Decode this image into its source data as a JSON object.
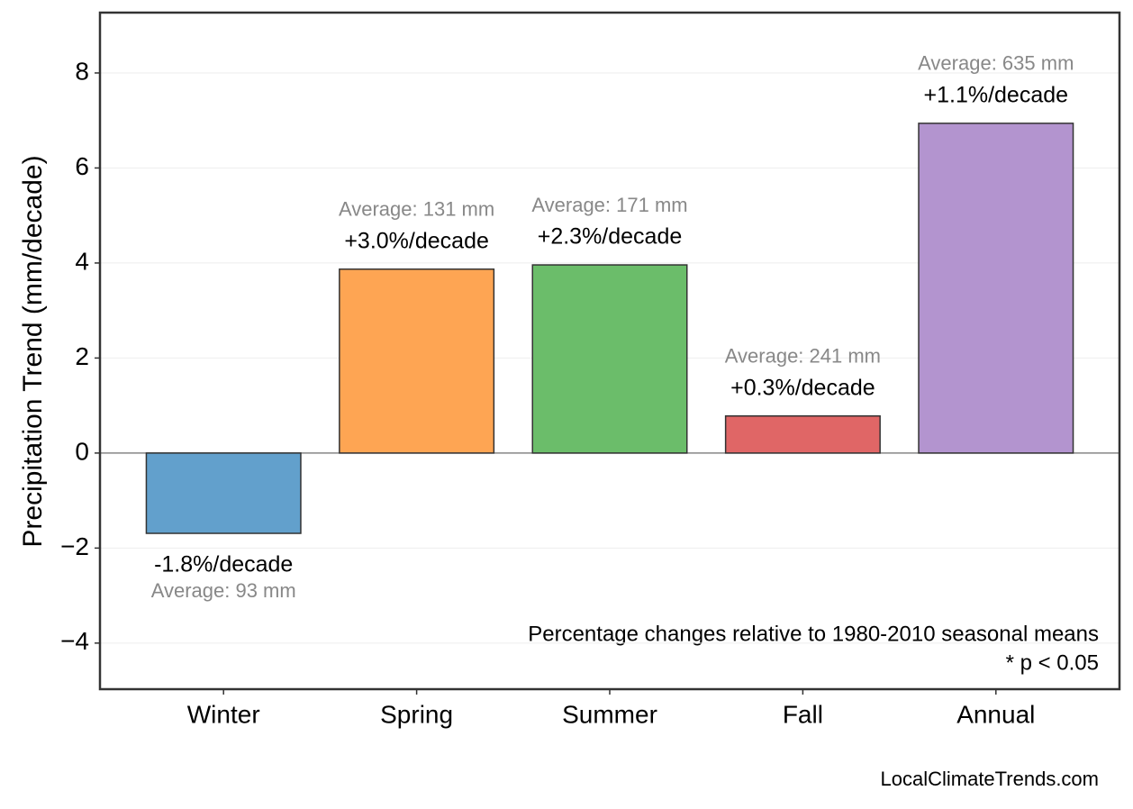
{
  "chart_data": {
    "type": "bar",
    "y_label": "Precipitation Trend (mm/decade)",
    "categories": [
      "Winter",
      "Spring",
      "Summer",
      "Fall",
      "Annual"
    ],
    "values": [
      -1.69,
      3.87,
      3.96,
      0.78,
      6.94
    ],
    "colors": [
      "#62a0cc",
      "#fea553",
      "#6bbd6a",
      "#e06666",
      "#b394cf"
    ],
    "trend_labels": [
      "-1.8%/decade",
      "+3.0%/decade",
      "+2.3%/decade",
      "+0.3%/decade",
      "+1.1%/decade"
    ],
    "average_labels": [
      "Average: 93 mm",
      "Average: 131 mm",
      "Average: 171 mm",
      "Average: 241 mm",
      "Average: 635 mm"
    ],
    "ylim": [
      -4.97,
      9.27
    ],
    "yticks": [
      {
        "value": -4,
        "label": "−4"
      },
      {
        "value": -2,
        "label": "−2"
      },
      0,
      2,
      4,
      6,
      8
    ],
    "grid": true,
    "notes": [
      "Percentage changes relative to 1980-2010 seasonal means",
      "* p < 0.05"
    ],
    "source": "LocalClimateTrends.com"
  }
}
